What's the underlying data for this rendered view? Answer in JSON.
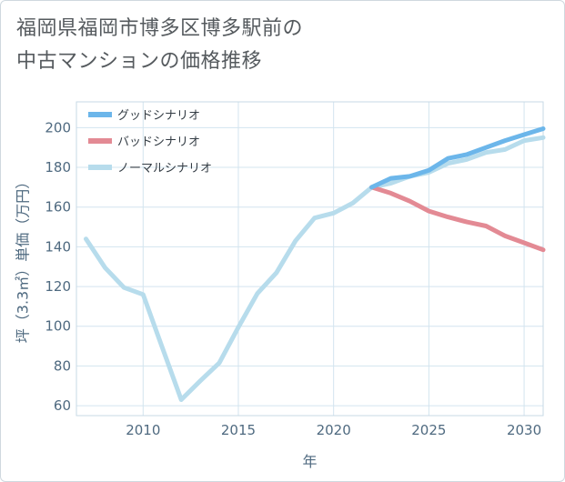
{
  "title_lines": [
    "福岡県福岡市博多区博多駅前の",
    "中古マンションの価格推移"
  ],
  "chart_data": {
    "type": "line",
    "xlabel": "年",
    "ylabel": "坪（3.3㎡）単価（万円）",
    "xlim": [
      2006.5,
      2031
    ],
    "ylim": [
      55,
      213
    ],
    "xticks": [
      2010,
      2015,
      2020,
      2025,
      2030
    ],
    "yticks": [
      60,
      80,
      100,
      120,
      140,
      160,
      180,
      200
    ],
    "grid": true,
    "legend_position": "top-left",
    "series": [
      {
        "name": "グッドシナリオ",
        "color": "#6cb6ea",
        "x": [
          2022,
          2023,
          2024,
          2025,
          2026,
          2027,
          2028,
          2029,
          2030,
          2031
        ],
        "y": [
          170,
          174.5,
          175.5,
          178.5,
          184.5,
          186.5,
          190,
          193.5,
          196.5,
          199.5
        ]
      },
      {
        "name": "バッドシナリオ",
        "color": "#e38a94",
        "x": [
          2022,
          2023,
          2024,
          2025,
          2026,
          2027,
          2028,
          2029,
          2030,
          2031
        ],
        "y": [
          170,
          167,
          163,
          158,
          155,
          152.5,
          150.5,
          145.5,
          142,
          138.5
        ]
      },
      {
        "name": "ノーマルシナリオ",
        "color": "#b7dcec",
        "x": [
          2007,
          2008,
          2009,
          2010,
          2011,
          2012,
          2013,
          2014,
          2015,
          2016,
          2017,
          2018,
          2019,
          2020,
          2021,
          2022,
          2023,
          2024,
          2025,
          2026,
          2027,
          2028,
          2029,
          2030,
          2031
        ],
        "y": [
          144,
          129.5,
          119.5,
          116,
          89.5,
          63,
          72.5,
          81.5,
          99.5,
          116.5,
          127,
          143,
          154.5,
          157,
          162,
          170,
          172,
          175.5,
          177.5,
          182,
          184,
          187.5,
          189,
          193.5,
          195
        ]
      }
    ]
  }
}
